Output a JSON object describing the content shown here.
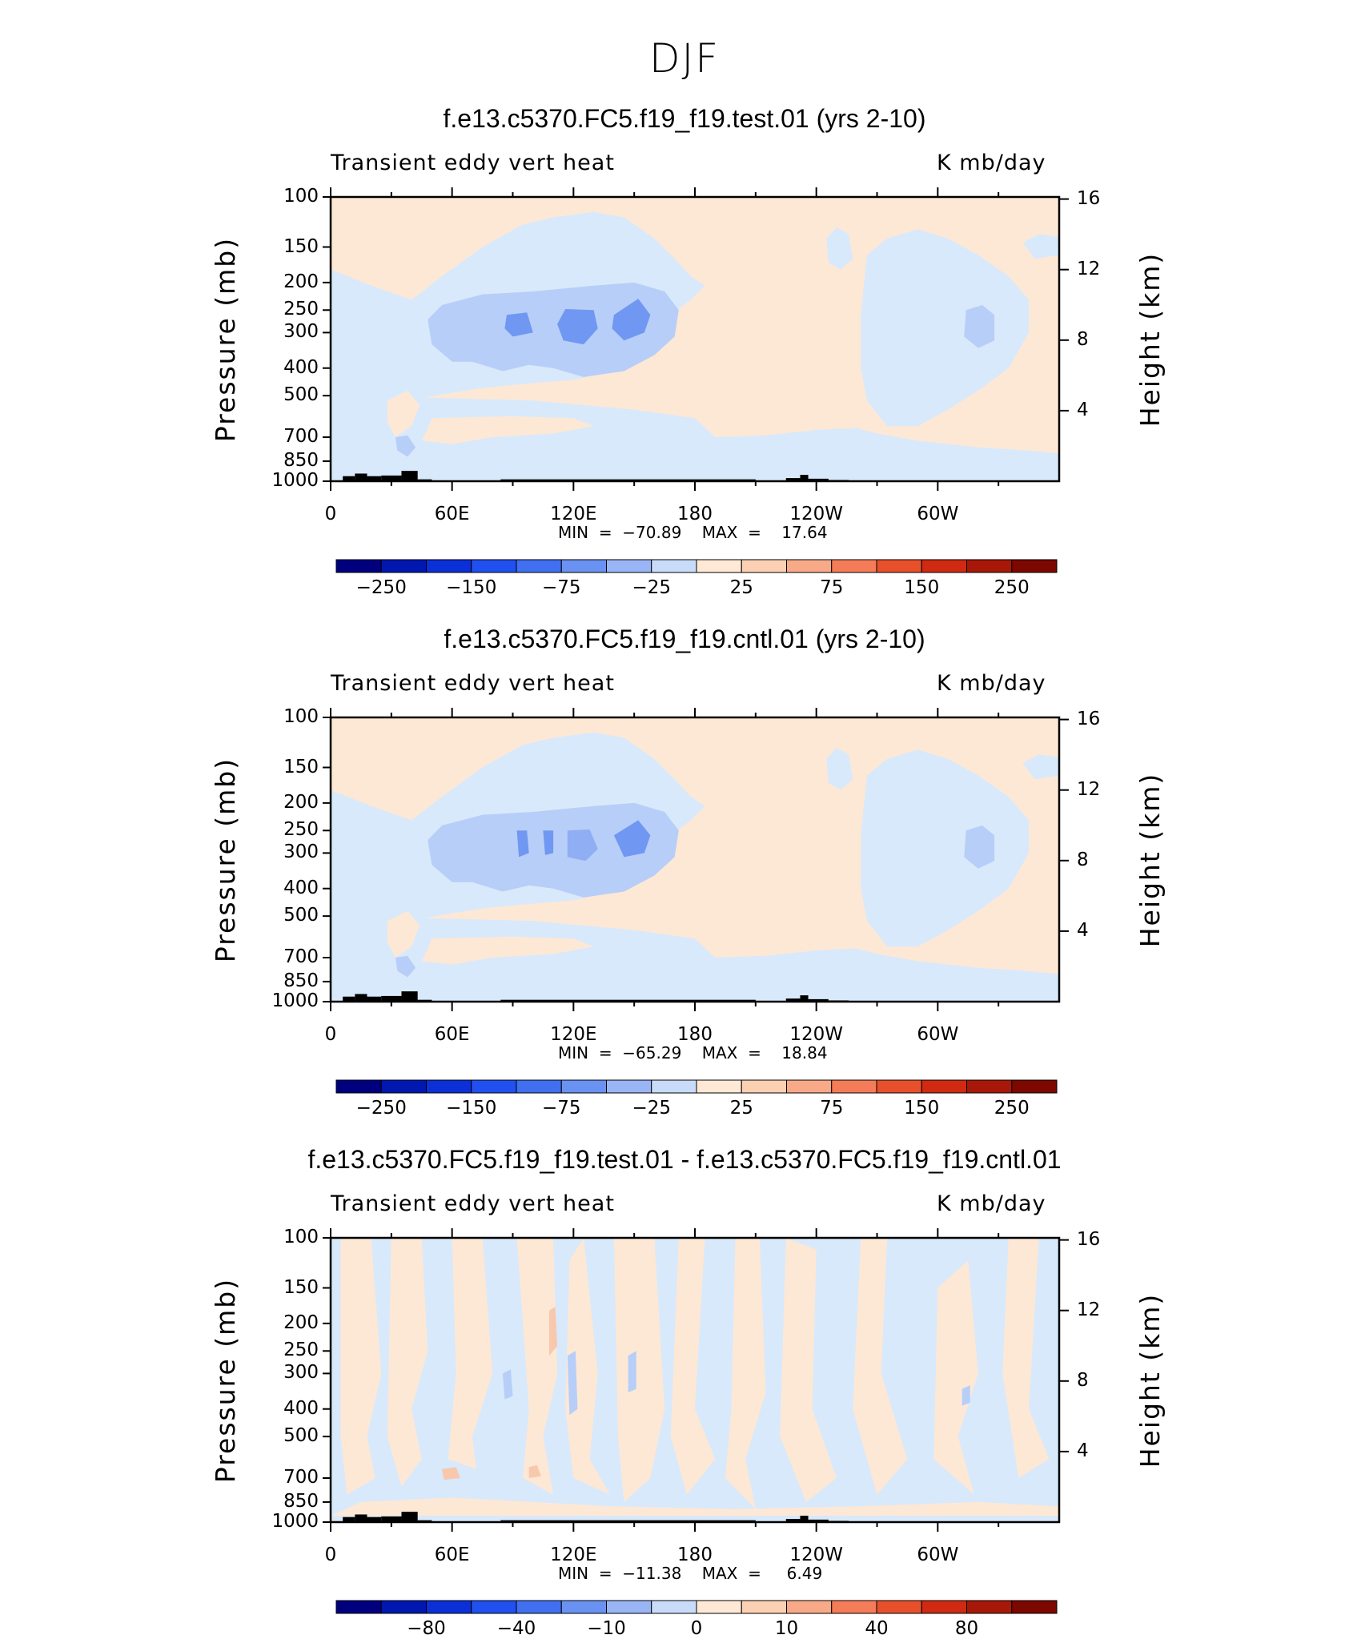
{
  "page": {
    "title": "DJF"
  },
  "panels": [
    {
      "title": "f.e13.c5370.FC5.f19_f19.test.01 (yrs 2-10)",
      "left_label": "Transient  eddy  vert  heat",
      "right_label": "K  mb/day",
      "ylabel": "Pressure  (mb)",
      "y2label": "Height  (km)",
      "min_text": "MIN  =  −70.89    MAX  =    17.64",
      "colorbar_labels": [
        "−250",
        "−150",
        "−75",
        "−25",
        "25",
        "75",
        "150",
        "250"
      ]
    },
    {
      "title": "f.e13.c5370.FC5.f19_f19.cntl.01 (yrs 2-10)",
      "left_label": "Transient  eddy  vert  heat",
      "right_label": "K  mb/day",
      "ylabel": "Pressure  (mb)",
      "y2label": "Height  (km)",
      "min_text": "MIN  =  −65.29    MAX  =    18.84",
      "colorbar_labels": [
        "−250",
        "−150",
        "−75",
        "−25",
        "25",
        "75",
        "150",
        "250"
      ]
    },
    {
      "title": "f.e13.c5370.FC5.f19_f19.test.01 - f.e13.c5370.FC5.f19_f19.cntl.01",
      "left_label": "Transient  eddy  vert  heat",
      "right_label": "K  mb/day",
      "ylabel": "Pressure  (mb)",
      "y2label": "Height  (km)",
      "min_text": "MIN  =  −11.38    MAX  =     6.49",
      "colorbar_labels": [
        "−80",
        "−40",
        "−10",
        "0",
        "10",
        "40",
        "80"
      ]
    }
  ],
  "colors": {
    "ramp": [
      "#00007f",
      "#0018b0",
      "#0c30d8",
      "#2050f0",
      "#4070f0",
      "#6a92f2",
      "#9ab5f6",
      "#c8dcfa",
      "#daeafc",
      "#ffe9d6",
      "#fcd0b3",
      "#f8aa88",
      "#f47c58",
      "#e8502c",
      "#d02a12",
      "#a81808",
      "#7c0800"
    ],
    "neutral_neg": "#d8e9fb",
    "neutral_pos": "#fde8d6",
    "weak_neg": "#b7cef8",
    "mid_neg": "#8faef3",
    "strong_neg": "#7097f1",
    "weak_pos": "#f8c8ad",
    "mid_pos": "#f2a38b",
    "topography": "#000000"
  },
  "chart_data": [
    {
      "type": "heatmap",
      "title": "f.e13.c5370.FC5.f19_f19.test.01 (yrs 2-10)",
      "variable": "Transient eddy vert heat",
      "units": "K mb/day",
      "xlabel": "",
      "ylabel": "Pressure (mb)",
      "y2label": "Height (km)",
      "x_ticks": [
        "0",
        "60E",
        "120E",
        "180",
        "120W",
        "60W"
      ],
      "y_ticks": [
        100,
        150,
        200,
        250,
        300,
        400,
        500,
        700,
        850,
        1000
      ],
      "y2_ticks": [
        4,
        8,
        12,
        16
      ],
      "min": -70.89,
      "max": 17.64,
      "contour_levels": [
        -250,
        -200,
        -150,
        -100,
        -75,
        -50,
        -25,
        -10,
        10,
        25,
        50,
        75,
        100,
        150,
        200,
        250
      ],
      "colorbar_labels": [
        -250,
        -150,
        -75,
        -25,
        25,
        75,
        150,
        250
      ]
    },
    {
      "type": "heatmap",
      "title": "f.e13.c5370.FC5.f19_f19.cntl.01 (yrs 2-10)",
      "variable": "Transient eddy vert heat",
      "units": "K mb/day",
      "xlabel": "",
      "ylabel": "Pressure (mb)",
      "y2label": "Height (km)",
      "x_ticks": [
        "0",
        "60E",
        "120E",
        "180",
        "120W",
        "60W"
      ],
      "y_ticks": [
        100,
        150,
        200,
        250,
        300,
        400,
        500,
        700,
        850,
        1000
      ],
      "y2_ticks": [
        4,
        8,
        12,
        16
      ],
      "min": -65.29,
      "max": 18.84,
      "contour_levels": [
        -250,
        -200,
        -150,
        -100,
        -75,
        -50,
        -25,
        -10,
        10,
        25,
        50,
        75,
        100,
        150,
        200,
        250
      ],
      "colorbar_labels": [
        -250,
        -150,
        -75,
        -25,
        25,
        75,
        150,
        250
      ]
    },
    {
      "type": "heatmap",
      "title": "f.e13.c5370.FC5.f19_f19.test.01 - f.e13.c5370.FC5.f19_f19.cntl.01",
      "variable": "Transient eddy vert heat",
      "units": "K mb/day",
      "xlabel": "",
      "ylabel": "Pressure (mb)",
      "y2label": "Height (km)",
      "x_ticks": [
        "0",
        "60E",
        "120E",
        "180",
        "120W",
        "60W"
      ],
      "y_ticks": [
        100,
        150,
        200,
        250,
        300,
        400,
        500,
        700,
        850,
        1000
      ],
      "y2_ticks": [
        4,
        8,
        12,
        16
      ],
      "min": -11.38,
      "max": 6.49,
      "colorbar_labels": [
        -80,
        -40,
        -10,
        0,
        10,
        40,
        80
      ]
    }
  ]
}
